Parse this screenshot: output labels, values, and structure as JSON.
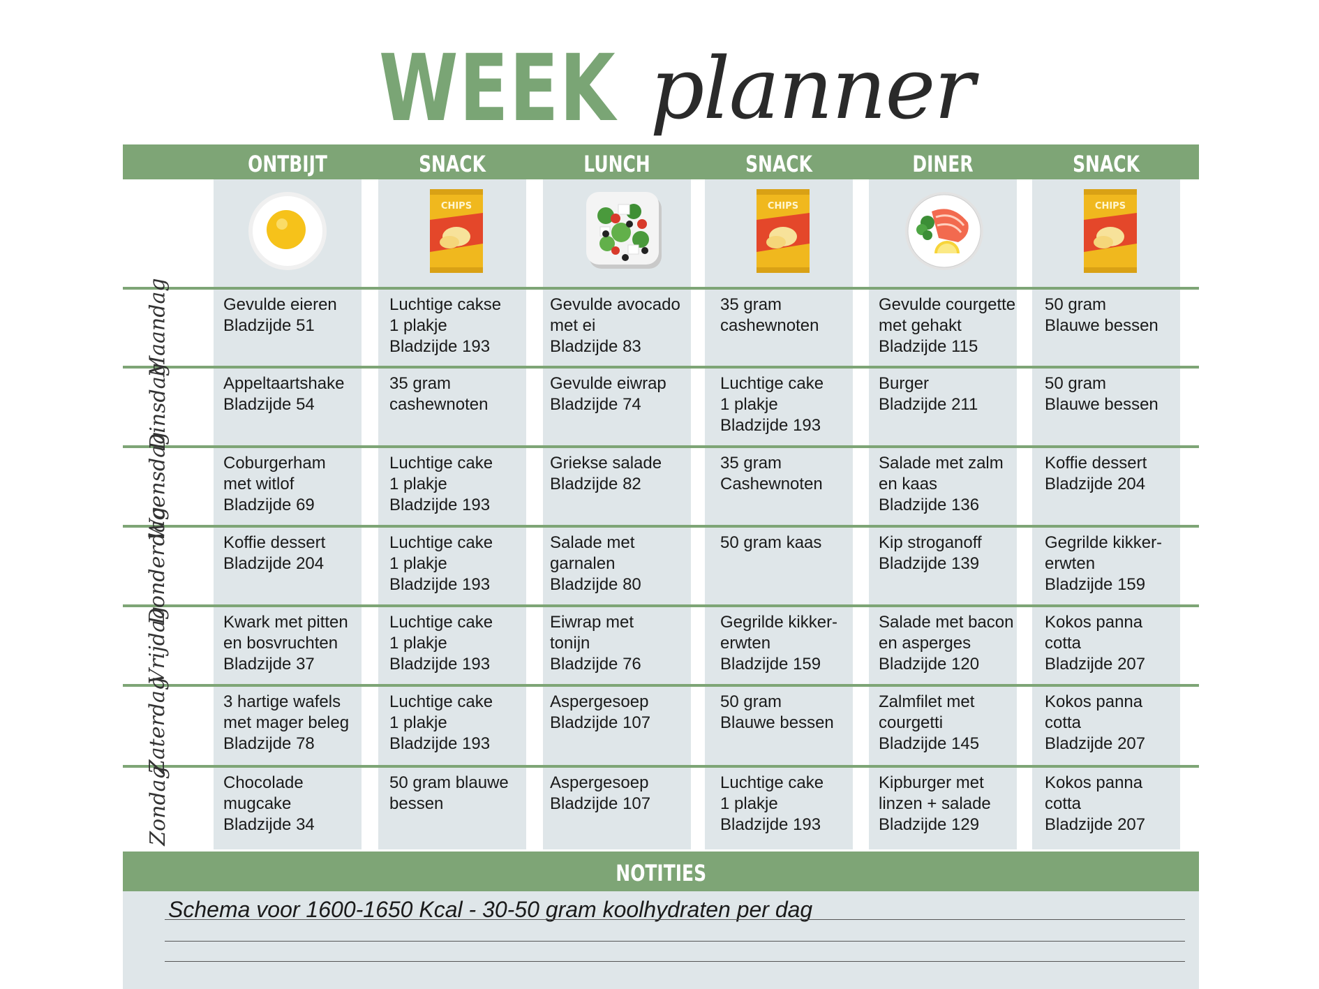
{
  "title": {
    "word1": "WEEK",
    "word2": "planner"
  },
  "columns": [
    {
      "label": "ONTBIJT",
      "icon": "fried-egg-icon"
    },
    {
      "label": "SNACK",
      "icon": "chips-bag-icon",
      "icon_text": "CHIPS"
    },
    {
      "label": "LUNCH",
      "icon": "salad-bowl-icon"
    },
    {
      "label": "SNACK",
      "icon": "chips-bag-icon",
      "icon_text": "CHIPS"
    },
    {
      "label": "DINER",
      "icon": "salmon-plate-icon"
    },
    {
      "label": "SNACK",
      "icon": "chips-bag-icon",
      "icon_text": "CHIPS"
    }
  ],
  "days": [
    {
      "name": "Maandag",
      "cells": [
        [
          "Gevulde eieren",
          "Bladzijde 51"
        ],
        [
          "Luchtige cakse",
          "1 plakje",
          "Bladzijde 193"
        ],
        [
          "Gevulde avocado",
          "met ei",
          "Bladzijde 83"
        ],
        [
          "35 gram",
          "cashewnoten"
        ],
        [
          "Gevulde courgette",
          "met gehakt",
          "Bladzijde 115"
        ],
        [
          "50 gram",
          "Blauwe bessen"
        ]
      ]
    },
    {
      "name": "Dinsdag",
      "cells": [
        [
          "Appeltaartshake",
          "Bladzijde 54"
        ],
        [
          "35 gram",
          "cashewnoten"
        ],
        [
          "Gevulde eiwrap",
          "Bladzijde 74"
        ],
        [
          "Luchtige cake",
          "1 plakje",
          "Bladzijde 193"
        ],
        [
          "Burger",
          "Bladzijde 211"
        ],
        [
          "50 gram",
          "Blauwe bessen"
        ]
      ]
    },
    {
      "name": "Woensdag",
      "cells": [
        [
          "Coburgerham",
          "met witlof",
          "Bladzijde 69"
        ],
        [
          "Luchtige cake",
          "1 plakje",
          "Bladzijde 193"
        ],
        [
          "Griekse salade",
          "Bladzijde 82"
        ],
        [
          "35 gram",
          "Cashewnoten"
        ],
        [
          "Salade met zalm",
          "en kaas",
          "Bladzijde 136"
        ],
        [
          "Koffie dessert",
          "Bladzijde 204"
        ]
      ]
    },
    {
      "name": "Donderdag",
      "cells": [
        [
          "Koffie dessert",
          "Bladzijde 204"
        ],
        [
          "Luchtige cake",
          "1 plakje",
          "Bladzijde 193"
        ],
        [
          "Salade met",
          "garnalen",
          "Bladzijde 80"
        ],
        [
          "50 gram kaas"
        ],
        [
          "Kip stroganoff",
          "Bladzijde 139"
        ],
        [
          "Gegrilde kikker-",
          "erwten",
          "Bladzijde 159"
        ]
      ]
    },
    {
      "name": "Vrijdag",
      "cells": [
        [
          "Kwark met pitten",
          "en bosvruchten",
          "Bladzijde 37"
        ],
        [
          "Luchtige cake",
          "1 plakje",
          "Bladzijde 193"
        ],
        [
          "Eiwrap met",
          "tonijn",
          "Bladzijde 76"
        ],
        [
          "Gegrilde kikker-",
          "erwten",
          "Bladzijde 159"
        ],
        [
          "Salade met bacon",
          "en asperges",
          "Bladzijde 120"
        ],
        [
          "Kokos panna",
          "cotta",
          "Bladzijde 207"
        ]
      ]
    },
    {
      "name": "Zaterdag",
      "cells": [
        [
          "3 hartige wafels",
          "met mager beleg",
          "Bladzijde 78"
        ],
        [
          "Luchtige cake",
          "1 plakje",
          "Bladzijde 193"
        ],
        [
          "Aspergesoep",
          "Bladzijde 107"
        ],
        [
          "50 gram",
          "Blauwe bessen"
        ],
        [
          "Zalmfilet met",
          "courgetti",
          "Bladzijde 145"
        ],
        [
          "Kokos panna",
          "cotta",
          "Bladzijde 207"
        ]
      ]
    },
    {
      "name": "Zondag",
      "cells": [
        [
          "Chocolade",
          "mugcake",
          "Bladzijde 34"
        ],
        [
          "50 gram blauwe",
          "bessen"
        ],
        [
          "Aspergesoep",
          "Bladzijde 107"
        ],
        [
          "Luchtige cake",
          "1 plakje",
          "Bladzijde 193"
        ],
        [
          "Kipburger met",
          "linzen + salade",
          "Bladzijde 129"
        ],
        [
          "Kokos panna",
          "cotta",
          "Bladzijde 207"
        ]
      ]
    }
  ],
  "notes": {
    "title": "NOTITIES",
    "text": "Schema voor 1600-1650 Kcal - 30-50 gram koolhydraten per dag"
  },
  "colors": {
    "green": "#7ea576",
    "title_green": "#7aa575",
    "column_bg": "#dfe6e9"
  }
}
